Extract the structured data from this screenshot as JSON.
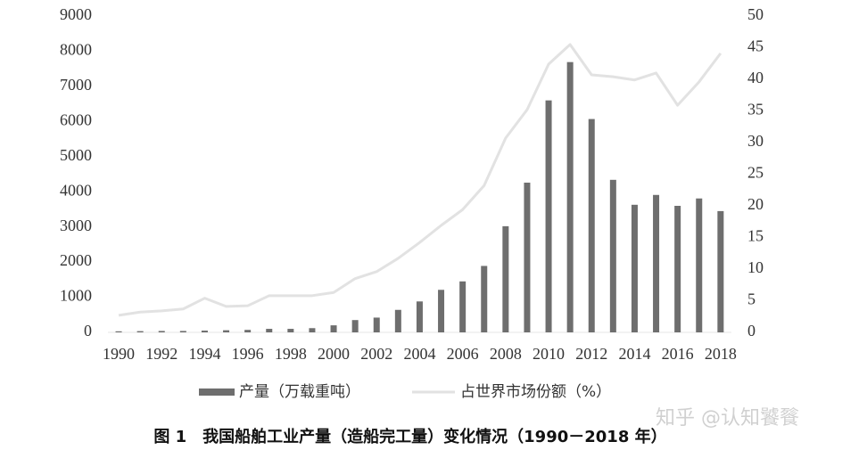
{
  "chart_data": {
    "type": "combo",
    "categories": [
      "1990",
      null,
      "1992",
      null,
      "1994",
      null,
      "1996",
      null,
      "1998",
      null,
      "2000",
      null,
      "2002",
      null,
      "2004",
      null,
      "2006",
      null,
      "2008",
      null,
      "2010",
      null,
      "2012",
      null,
      "2014",
      null,
      "2016",
      null,
      "2018"
    ],
    "series": [
      {
        "name": "产量（万载重吨）",
        "type": "bar",
        "color": "#6e6e6e",
        "values": [
          30,
          35,
          40,
          40,
          50,
          60,
          70,
          100,
          100,
          120,
          200,
          350,
          420,
          640,
          880,
          1210,
          1450,
          1890,
          3020,
          4260,
          6600,
          7690,
          6070,
          4340,
          3630,
          3910,
          3600,
          3810,
          3450
        ]
      },
      {
        "name": "占世界市场份额（%）",
        "type": "line",
        "axis": "y2",
        "color": "#e2e2e2",
        "values": [
          2.7,
          3.2,
          3.4,
          3.7,
          5.4,
          4.1,
          4.2,
          5.8,
          5.8,
          5.8,
          6.3,
          8.5,
          9.6,
          11.7,
          14.2,
          16.9,
          19.4,
          23.2,
          30.7,
          35.2,
          42.4,
          45.5,
          40.7,
          40.4,
          39.9,
          41.0,
          35.9,
          39.6,
          44.1
        ]
      }
    ],
    "ylim": [
      0,
      9000
    ],
    "yticks": [
      0,
      1000,
      2000,
      3000,
      4000,
      5000,
      6000,
      7000,
      8000,
      9000
    ],
    "y2lim": [
      0,
      50
    ],
    "y2ticks": [
      0,
      5,
      10,
      15,
      20,
      25,
      30,
      35,
      40,
      45,
      50
    ],
    "caption": "图 1　我国船舶工业产量（造船完工量）变化情况（1990－2018 年）",
    "watermark": "知乎 @认知饕餮"
  }
}
